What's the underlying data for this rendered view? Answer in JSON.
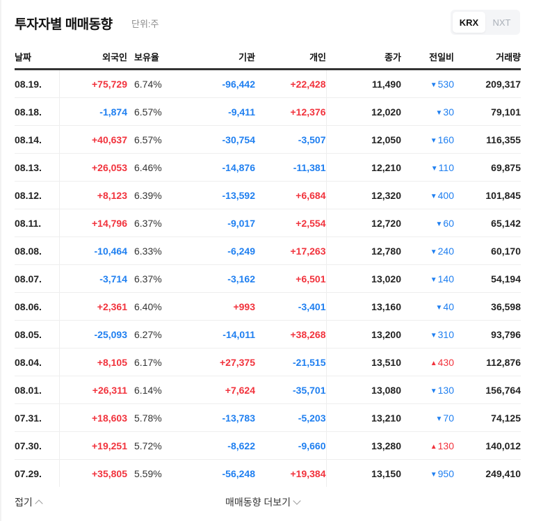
{
  "header": {
    "title": "투자자별 매매동향",
    "unit": "단위:주",
    "market_tabs": [
      {
        "label": "KRX",
        "active": true
      },
      {
        "label": "NXT",
        "active": false
      }
    ]
  },
  "colors": {
    "up": "#f1323c",
    "down": "#1f7ff0",
    "text": "#111111"
  },
  "table": {
    "columns": [
      "날짜",
      "외국인",
      "보유율",
      "기관",
      "개인",
      "종가",
      "전일비",
      "거래량"
    ],
    "rows": [
      {
        "date": "08.19.",
        "foreign": "+75,729",
        "foreign_dir": "up",
        "hold": "6.74%",
        "inst": "-96,442",
        "inst_dir": "down",
        "indiv": "+22,428",
        "indiv_dir": "up",
        "close": "11,490",
        "diff_dir": "down",
        "diff_icon": "▼",
        "diff": "530",
        "volume": "209,317"
      },
      {
        "date": "08.18.",
        "foreign": "-1,874",
        "foreign_dir": "down",
        "hold": "6.57%",
        "inst": "-9,411",
        "inst_dir": "down",
        "indiv": "+12,376",
        "indiv_dir": "up",
        "close": "12,020",
        "diff_dir": "down",
        "diff_icon": "▼",
        "diff": "30",
        "volume": "79,101"
      },
      {
        "date": "08.14.",
        "foreign": "+40,637",
        "foreign_dir": "up",
        "hold": "6.57%",
        "inst": "-30,754",
        "inst_dir": "down",
        "indiv": "-3,507",
        "indiv_dir": "down",
        "close": "12,050",
        "diff_dir": "down",
        "diff_icon": "▼",
        "diff": "160",
        "volume": "116,355"
      },
      {
        "date": "08.13.",
        "foreign": "+26,053",
        "foreign_dir": "up",
        "hold": "6.46%",
        "inst": "-14,876",
        "inst_dir": "down",
        "indiv": "-11,381",
        "indiv_dir": "down",
        "close": "12,210",
        "diff_dir": "down",
        "diff_icon": "▼",
        "diff": "110",
        "volume": "69,875"
      },
      {
        "date": "08.12.",
        "foreign": "+8,123",
        "foreign_dir": "up",
        "hold": "6.39%",
        "inst": "-13,592",
        "inst_dir": "down",
        "indiv": "+6,684",
        "indiv_dir": "up",
        "close": "12,320",
        "diff_dir": "down",
        "diff_icon": "▼",
        "diff": "400",
        "volume": "101,845"
      },
      {
        "date": "08.11.",
        "foreign": "+14,796",
        "foreign_dir": "up",
        "hold": "6.37%",
        "inst": "-9,017",
        "inst_dir": "down",
        "indiv": "+2,554",
        "indiv_dir": "up",
        "close": "12,720",
        "diff_dir": "down",
        "diff_icon": "▼",
        "diff": "60",
        "volume": "65,142"
      },
      {
        "date": "08.08.",
        "foreign": "-10,464",
        "foreign_dir": "down",
        "hold": "6.33%",
        "inst": "-6,249",
        "inst_dir": "down",
        "indiv": "+17,263",
        "indiv_dir": "up",
        "close": "12,780",
        "diff_dir": "down",
        "diff_icon": "▼",
        "diff": "240",
        "volume": "60,170"
      },
      {
        "date": "08.07.",
        "foreign": "-3,714",
        "foreign_dir": "down",
        "hold": "6.37%",
        "inst": "-3,162",
        "inst_dir": "down",
        "indiv": "+6,501",
        "indiv_dir": "up",
        "close": "13,020",
        "diff_dir": "down",
        "diff_icon": "▼",
        "diff": "140",
        "volume": "54,194"
      },
      {
        "date": "08.06.",
        "foreign": "+2,361",
        "foreign_dir": "up",
        "hold": "6.40%",
        "inst": "+993",
        "inst_dir": "up",
        "indiv": "-3,401",
        "indiv_dir": "down",
        "close": "13,160",
        "diff_dir": "down",
        "diff_icon": "▼",
        "diff": "40",
        "volume": "36,598"
      },
      {
        "date": "08.05.",
        "foreign": "-25,093",
        "foreign_dir": "down",
        "hold": "6.27%",
        "inst": "-14,011",
        "inst_dir": "down",
        "indiv": "+38,268",
        "indiv_dir": "up",
        "close": "13,200",
        "diff_dir": "down",
        "diff_icon": "▼",
        "diff": "310",
        "volume": "93,796"
      },
      {
        "date": "08.04.",
        "foreign": "+8,105",
        "foreign_dir": "up",
        "hold": "6.17%",
        "inst": "+27,375",
        "inst_dir": "up",
        "indiv": "-21,515",
        "indiv_dir": "down",
        "close": "13,510",
        "diff_dir": "up",
        "diff_icon": "▲",
        "diff": "430",
        "volume": "112,876"
      },
      {
        "date": "08.01.",
        "foreign": "+26,311",
        "foreign_dir": "up",
        "hold": "6.14%",
        "inst": "+7,624",
        "inst_dir": "up",
        "indiv": "-35,701",
        "indiv_dir": "down",
        "close": "13,080",
        "diff_dir": "down",
        "diff_icon": "▼",
        "diff": "130",
        "volume": "156,764"
      },
      {
        "date": "07.31.",
        "foreign": "+18,603",
        "foreign_dir": "up",
        "hold": "5.78%",
        "inst": "-13,783",
        "inst_dir": "down",
        "indiv": "-5,203",
        "indiv_dir": "down",
        "close": "13,210",
        "diff_dir": "down",
        "diff_icon": "▼",
        "diff": "70",
        "volume": "74,125"
      },
      {
        "date": "07.30.",
        "foreign": "+19,251",
        "foreign_dir": "up",
        "hold": "5.72%",
        "inst": "-8,622",
        "inst_dir": "down",
        "indiv": "-9,660",
        "indiv_dir": "down",
        "close": "13,280",
        "diff_dir": "up",
        "diff_icon": "▲",
        "diff": "130",
        "volume": "140,012"
      },
      {
        "date": "07.29.",
        "foreign": "+35,805",
        "foreign_dir": "up",
        "hold": "5.59%",
        "inst": "-56,248",
        "inst_dir": "down",
        "indiv": "+19,384",
        "indiv_dir": "up",
        "close": "13,150",
        "diff_dir": "down",
        "diff_icon": "▼",
        "diff": "950",
        "volume": "249,410"
      }
    ]
  },
  "footer": {
    "collapse_label": "접기",
    "more_label": "매매동향 더보기"
  }
}
